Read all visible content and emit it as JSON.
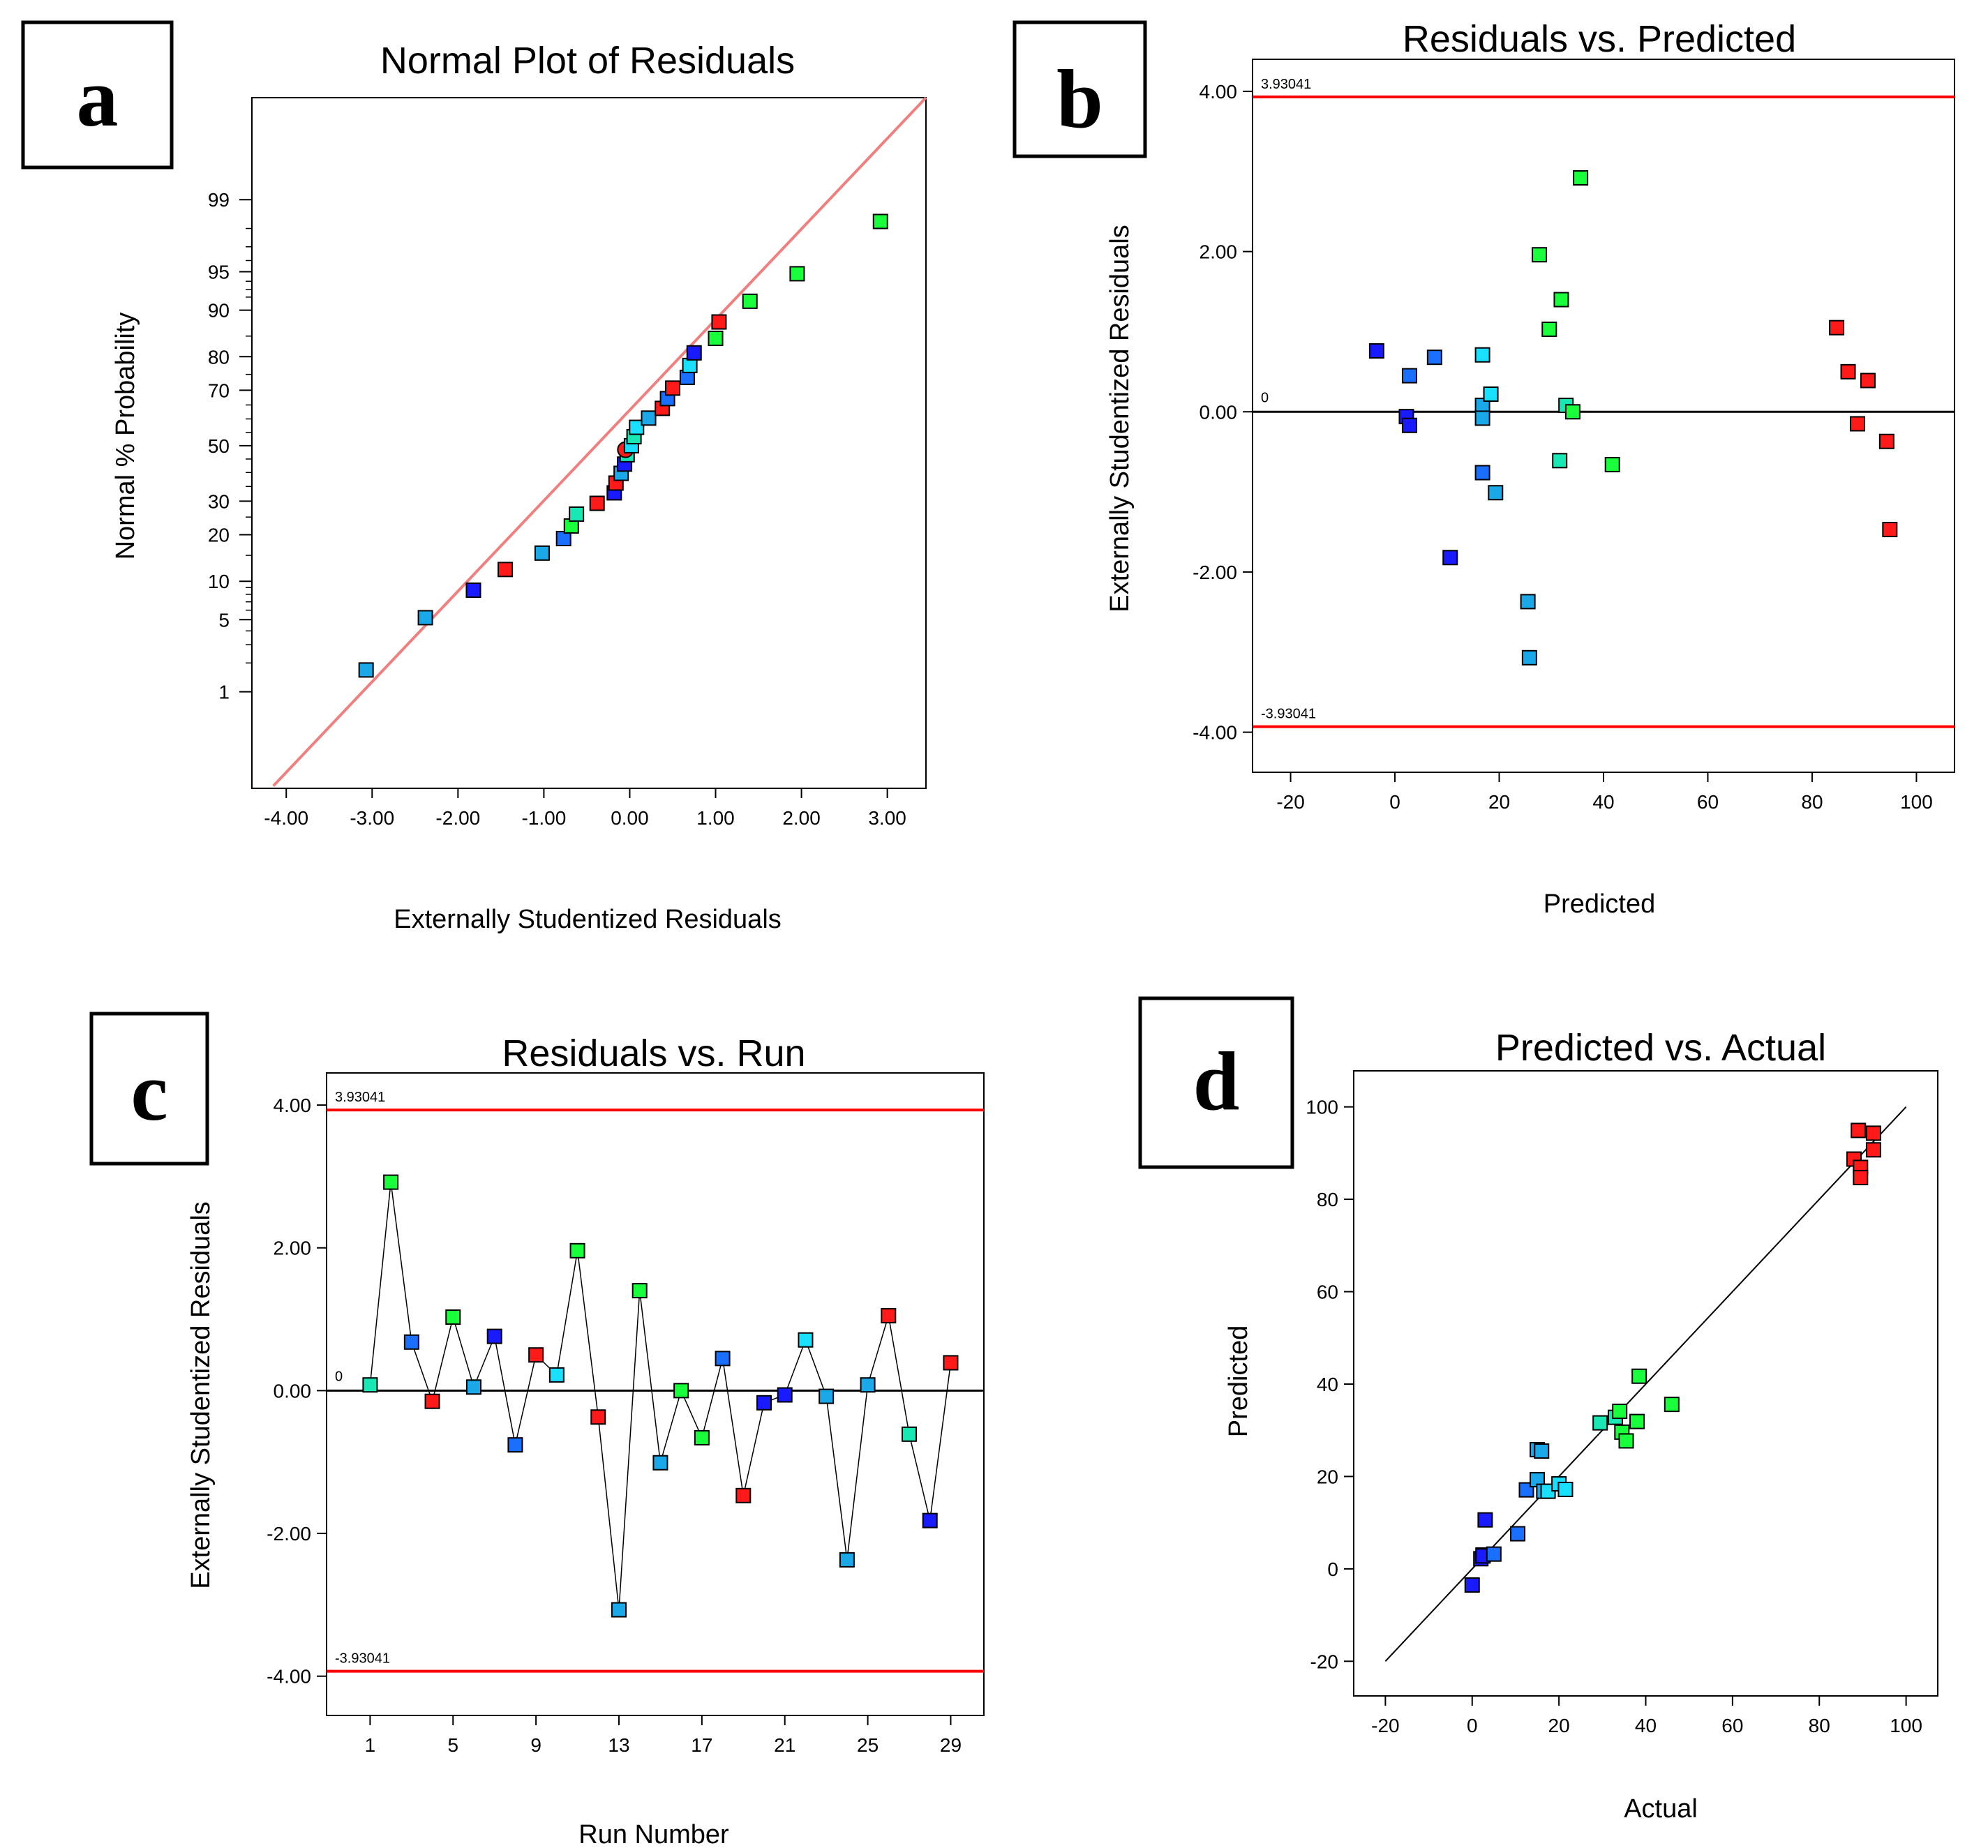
{
  "palette": {
    "red": "#ff1a1a",
    "blue": "#1a1aff",
    "midblue": "#1a6fff",
    "skyblue": "#1aa8e8",
    "cyan": "#1ae0ff",
    "teal": "#1ae8b4",
    "green": "#1aff3c",
    "limit": "#ff0000",
    "fit_line": "#f08080",
    "axis": "#000000"
  },
  "chart_data": [
    {
      "id": "a",
      "letter": "a",
      "type": "scatter",
      "title": "Normal Plot of Residuals",
      "xlabel": "Externally Studentized Residuals",
      "ylabel": "Normal % Probability",
      "xlim": [
        -4.4,
        3.45
      ],
      "prob_range": [
        0.06,
        99.95
      ],
      "xticks": [
        -4,
        -3,
        -2,
        -1,
        0,
        1,
        2,
        3
      ],
      "xtick_labels": [
        "-4.00",
        "-3.00",
        "-2.00",
        "-1.00",
        "0.00",
        "1.00",
        "2.00",
        "3.00"
      ],
      "yticks": [
        1,
        5,
        10,
        20,
        30,
        50,
        70,
        80,
        90,
        95,
        99
      ],
      "yminor": [
        2,
        3,
        4,
        6,
        7,
        8,
        9,
        15,
        25,
        35,
        40,
        45,
        55,
        60,
        65,
        75,
        85,
        92,
        93,
        94,
        96,
        97,
        98
      ],
      "fit_line": {
        "x": [
          -4.15,
          3.45
        ],
        "p": [
          0.065,
          99.95
        ]
      },
      "points": [
        {
          "x": -3.07,
          "p": 1.7,
          "c": "skyblue"
        },
        {
          "x": -2.38,
          "p": 5.2,
          "c": "skyblue"
        },
        {
          "x": -1.82,
          "p": 8.6,
          "c": "blue"
        },
        {
          "x": -1.45,
          "p": 12.1,
          "c": "red"
        },
        {
          "x": -1.02,
          "p": 15.5,
          "c": "skyblue"
        },
        {
          "x": -0.77,
          "p": 19.0,
          "c": "midblue"
        },
        {
          "x": -0.68,
          "p": 22.4,
          "c": "green"
        },
        {
          "x": -0.62,
          "p": 25.9,
          "c": "teal"
        },
        {
          "x": -0.38,
          "p": 29.3,
          "c": "red"
        },
        {
          "x": -0.18,
          "p": 32.8,
          "c": "blue"
        },
        {
          "x": -0.16,
          "p": 36.2,
          "c": "red"
        },
        {
          "x": -0.1,
          "p": 39.7,
          "c": "skyblue"
        },
        {
          "x": -0.06,
          "p": 43.1,
          "c": "blue"
        },
        {
          "x": -0.03,
          "p": 46.6,
          "c": "teal"
        },
        {
          "x": -0.05,
          "p": 48.5,
          "c": "red",
          "circle": true
        },
        {
          "x": 0.02,
          "p": 50.0,
          "c": "cyan"
        },
        {
          "x": 0.05,
          "p": 53.4,
          "c": "teal"
        },
        {
          "x": 0.08,
          "p": 56.9,
          "c": "cyan"
        },
        {
          "x": 0.22,
          "p": 60.3,
          "c": "skyblue"
        },
        {
          "x": 0.38,
          "p": 63.8,
          "c": "red"
        },
        {
          "x": 0.44,
          "p": 67.2,
          "c": "midblue"
        },
        {
          "x": 0.5,
          "p": 70.7,
          "c": "red"
        },
        {
          "x": 0.67,
          "p": 74.1,
          "c": "midblue"
        },
        {
          "x": 0.7,
          "p": 77.6,
          "c": "cyan"
        },
        {
          "x": 0.75,
          "p": 81.0,
          "c": "blue"
        },
        {
          "x": 1.0,
          "p": 84.5,
          "c": "green"
        },
        {
          "x": 1.04,
          "p": 87.9,
          "c": "red"
        },
        {
          "x": 1.4,
          "p": 91.4,
          "c": "green"
        },
        {
          "x": 1.95,
          "p": 94.8,
          "c": "green"
        },
        {
          "x": 2.92,
          "p": 98.3,
          "c": "green"
        }
      ]
    },
    {
      "id": "b",
      "letter": "b",
      "type": "scatter",
      "title": "Residuals vs. Predicted",
      "xlabel": "Predicted",
      "ylabel": "Externally Studentized Residuals",
      "xlim": [
        -27.3,
        107.3
      ],
      "ylim": [
        -4.5,
        4.4
      ],
      "xticks": [
        -20,
        0,
        20,
        40,
        60,
        80,
        100
      ],
      "xtick_labels": [
        "-20",
        "0",
        "20",
        "40",
        "60",
        "80",
        "100"
      ],
      "yticks": [
        -4,
        -2,
        0,
        2,
        4
      ],
      "ytick_labels": [
        "-4.00",
        "-2.00",
        "0.00",
        "2.00",
        "4.00"
      ],
      "limit": 3.93041,
      "limit_label_top": "3.93041",
      "limit_label_bottom": "-3.93041",
      "zero_label": "0",
      "points": [
        {
          "x": -3.5,
          "y": 0.76,
          "c": "blue"
        },
        {
          "x": 2.2,
          "y": -0.06,
          "c": "blue"
        },
        {
          "x": 2.8,
          "y": 0.45,
          "c": "midblue"
        },
        {
          "x": 2.8,
          "y": -0.17,
          "c": "blue"
        },
        {
          "x": 7.6,
          "y": 0.68,
          "c": "midblue"
        },
        {
          "x": 10.6,
          "y": -1.82,
          "c": "blue"
        },
        {
          "x": 16.8,
          "y": 0.71,
          "c": "cyan"
        },
        {
          "x": 16.8,
          "y": 0.08,
          "c": "skyblue"
        },
        {
          "x": 16.8,
          "y": -0.08,
          "c": "skyblue"
        },
        {
          "x": 16.8,
          "y": -0.76,
          "c": "midblue"
        },
        {
          "x": 18.4,
          "y": 0.22,
          "c": "cyan"
        },
        {
          "x": 19.3,
          "y": -1.01,
          "c": "skyblue"
        },
        {
          "x": 25.5,
          "y": -2.37,
          "c": "skyblue"
        },
        {
          "x": 25.8,
          "y": -3.07,
          "c": "skyblue"
        },
        {
          "x": 27.7,
          "y": 1.96,
          "c": "green"
        },
        {
          "x": 29.6,
          "y": 1.03,
          "c": "green"
        },
        {
          "x": 31.6,
          "y": -0.61,
          "c": "teal"
        },
        {
          "x": 31.9,
          "y": 1.4,
          "c": "green"
        },
        {
          "x": 32.8,
          "y": 0.08,
          "c": "teal"
        },
        {
          "x": 34.1,
          "y": 0.0,
          "c": "green"
        },
        {
          "x": 35.6,
          "y": 2.92,
          "c": "green"
        },
        {
          "x": 41.7,
          "y": -0.66,
          "c": "green"
        },
        {
          "x": 84.7,
          "y": 1.05,
          "c": "red"
        },
        {
          "x": 86.9,
          "y": 0.5,
          "c": "red"
        },
        {
          "x": 88.7,
          "y": -0.15,
          "c": "red"
        },
        {
          "x": 90.7,
          "y": 0.39,
          "c": "red"
        },
        {
          "x": 94.3,
          "y": -0.37,
          "c": "red"
        },
        {
          "x": 94.9,
          "y": -1.47,
          "c": "red"
        }
      ]
    },
    {
      "id": "c",
      "letter": "c",
      "type": "line",
      "title": "Residuals vs. Run",
      "xlabel": "Run Number",
      "ylabel": "Externally Studentized Residuals",
      "xlim": [
        -1.1,
        30.6
      ],
      "ylim": [
        -4.55,
        4.45
      ],
      "xticks": [
        1,
        5,
        9,
        13,
        17,
        21,
        25,
        29
      ],
      "xtick_labels": [
        "1",
        "5",
        "9",
        "13",
        "17",
        "21",
        "25",
        "29"
      ],
      "yticks": [
        -4,
        -2,
        0,
        2,
        4
      ],
      "ytick_labels": [
        "-4.00",
        "-2.00",
        "0.00",
        "2.00",
        "4.00"
      ],
      "limit": 3.93041,
      "limit_label_top": "3.93041",
      "limit_label_bottom": "-3.93041",
      "zero_label": "0",
      "points": [
        {
          "x": 1,
          "y": 0.08,
          "c": "teal"
        },
        {
          "x": 2,
          "y": 2.92,
          "c": "green"
        },
        {
          "x": 3,
          "y": 0.68,
          "c": "midblue"
        },
        {
          "x": 4,
          "y": -0.15,
          "c": "red"
        },
        {
          "x": 5,
          "y": 1.03,
          "c": "green"
        },
        {
          "x": 6,
          "y": 0.05,
          "c": "skyblue"
        },
        {
          "x": 7,
          "y": 0.76,
          "c": "blue"
        },
        {
          "x": 8,
          "y": -0.76,
          "c": "midblue"
        },
        {
          "x": 9,
          "y": 0.5,
          "c": "red"
        },
        {
          "x": 10,
          "y": 0.22,
          "c": "cyan"
        },
        {
          "x": 11,
          "y": 1.96,
          "c": "green"
        },
        {
          "x": 12,
          "y": -0.37,
          "c": "red"
        },
        {
          "x": 13,
          "y": -3.07,
          "c": "skyblue"
        },
        {
          "x": 14,
          "y": 1.4,
          "c": "green"
        },
        {
          "x": 15,
          "y": -1.01,
          "c": "skyblue"
        },
        {
          "x": 16,
          "y": 0.0,
          "c": "green"
        },
        {
          "x": 17,
          "y": -0.66,
          "c": "green"
        },
        {
          "x": 18,
          "y": 0.45,
          "c": "midblue"
        },
        {
          "x": 19,
          "y": -1.47,
          "c": "red"
        },
        {
          "x": 20,
          "y": -0.17,
          "c": "blue"
        },
        {
          "x": 21,
          "y": -0.06,
          "c": "blue"
        },
        {
          "x": 22,
          "y": 0.71,
          "c": "cyan"
        },
        {
          "x": 23,
          "y": -0.08,
          "c": "skyblue"
        },
        {
          "x": 24,
          "y": -2.37,
          "c": "skyblue"
        },
        {
          "x": 25,
          "y": 0.08,
          "c": "skyblue"
        },
        {
          "x": 26,
          "y": 1.05,
          "c": "red"
        },
        {
          "x": 27,
          "y": -0.61,
          "c": "teal"
        },
        {
          "x": 28,
          "y": -1.82,
          "c": "blue"
        },
        {
          "x": 29,
          "y": 0.39,
          "c": "red"
        }
      ]
    },
    {
      "id": "d",
      "letter": "d",
      "type": "scatter",
      "title": "Predicted vs. Actual",
      "xlabel": "Actual",
      "ylabel": "Predicted",
      "xlim": [
        -27.3,
        107.3
      ],
      "ylim": [
        -27.5,
        107.8
      ],
      "xticks": [
        -20,
        0,
        20,
        40,
        60,
        80,
        100
      ],
      "xtick_labels": [
        "-20",
        "0",
        "20",
        "40",
        "60",
        "80",
        "100"
      ],
      "yticks": [
        -20,
        0,
        20,
        40,
        60,
        80,
        100
      ],
      "ytick_labels": [
        "-20",
        "0",
        "20",
        "40",
        "60",
        "80",
        "100"
      ],
      "diag": [
        -20,
        100
      ],
      "points": [
        {
          "x": 0.0,
          "y": -3.5,
          "c": "blue"
        },
        {
          "x": 2.0,
          "y": 2.2,
          "c": "blue"
        },
        {
          "x": 2.5,
          "y": 3.0,
          "c": "midblue"
        },
        {
          "x": 2.5,
          "y": 2.8,
          "c": "blue"
        },
        {
          "x": 3.0,
          "y": 10.6,
          "c": "blue"
        },
        {
          "x": 5.0,
          "y": 3.2,
          "c": "midblue"
        },
        {
          "x": 10.5,
          "y": 7.6,
          "c": "midblue"
        },
        {
          "x": 12.5,
          "y": 17.1,
          "c": "midblue"
        },
        {
          "x": 15.0,
          "y": 25.8,
          "c": "skyblue"
        },
        {
          "x": 15.0,
          "y": 19.3,
          "c": "skyblue"
        },
        {
          "x": 16.0,
          "y": 25.5,
          "c": "skyblue"
        },
        {
          "x": 16.5,
          "y": 16.8,
          "c": "skyblue"
        },
        {
          "x": 17.5,
          "y": 16.8,
          "c": "cyan"
        },
        {
          "x": 20.0,
          "y": 18.4,
          "c": "cyan"
        },
        {
          "x": 21.5,
          "y": 17.2,
          "c": "cyan"
        },
        {
          "x": 29.5,
          "y": 31.6,
          "c": "teal"
        },
        {
          "x": 33.0,
          "y": 32.8,
          "c": "teal"
        },
        {
          "x": 34.0,
          "y": 34.1,
          "c": "green"
        },
        {
          "x": 34.5,
          "y": 29.6,
          "c": "green"
        },
        {
          "x": 35.5,
          "y": 27.7,
          "c": "green"
        },
        {
          "x": 38.0,
          "y": 31.9,
          "c": "green"
        },
        {
          "x": 38.5,
          "y": 41.7,
          "c": "green"
        },
        {
          "x": 46.0,
          "y": 35.6,
          "c": "green"
        },
        {
          "x": 88.0,
          "y": 88.7,
          "c": "red"
        },
        {
          "x": 89.0,
          "y": 94.9,
          "c": "red"
        },
        {
          "x": 89.5,
          "y": 86.9,
          "c": "red"
        },
        {
          "x": 89.5,
          "y": 84.7,
          "c": "red"
        },
        {
          "x": 92.5,
          "y": 94.3,
          "c": "red"
        },
        {
          "x": 92.5,
          "y": 90.7,
          "c": "red"
        }
      ]
    }
  ]
}
